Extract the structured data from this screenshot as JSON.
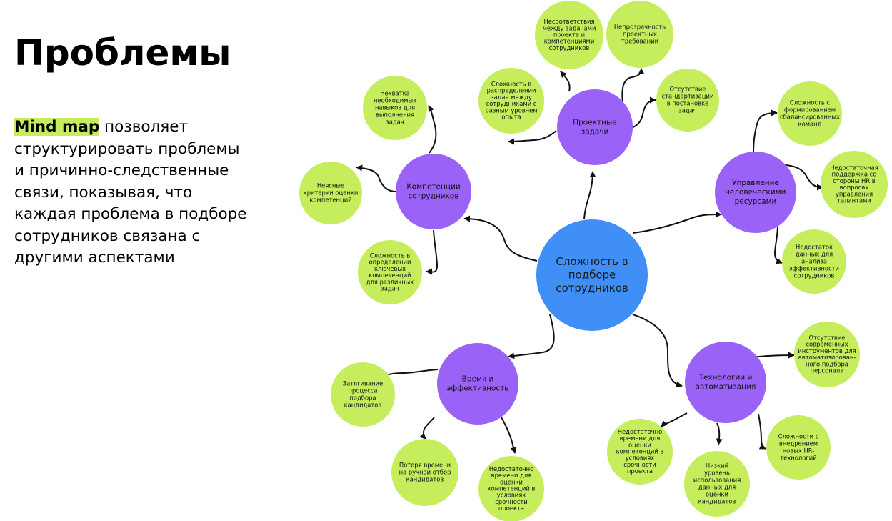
{
  "title": "Проблемы",
  "description": {
    "highlight": "Mind map",
    "text": " позволяет структурировать проблемы и причинно-следственные связи, показывая, что каждая проблема в подборе сотрудников связана с другими аспектами"
  },
  "colors": {
    "center": "#3f8ff7",
    "branch": "#9a62f7",
    "leaf": "#c6ed5c",
    "connector": "#111111"
  },
  "mindmap": {
    "center": [
      "Сложность в",
      "подборе",
      "сотрудников"
    ],
    "branches": [
      {
        "id": "tasks",
        "label": [
          "Проектные",
          "задачи"
        ],
        "leaves": [
          [
            "Несоответствия",
            "между задачами",
            "проекта и",
            "компетенциями",
            "сотрудников"
          ],
          [
            "Непрозрачность",
            "проектных",
            "требований"
          ],
          [
            "Сложность в",
            "распределении",
            "задач между",
            "сотрудниками с",
            "разным уровнем",
            "опыта"
          ],
          [
            "Отсутствие",
            "стандартизации",
            "в постановке",
            "задач"
          ]
        ]
      },
      {
        "id": "competencies",
        "label": [
          "Компетенции",
          "сотрудников"
        ],
        "leaves": [
          [
            "Нехватка",
            "необходимых",
            "навыков для",
            "выполнения",
            "задач"
          ],
          [
            "Неясные",
            "критерии оценки",
            "компетенций"
          ],
          [
            "Сложность в",
            "определении",
            "ключевых",
            "компетенций",
            "для различных",
            "задач"
          ]
        ]
      },
      {
        "id": "hr",
        "label": [
          "Управление",
          "человеческими",
          "ресурсами"
        ],
        "leaves": [
          [
            "Сложность с",
            "формированием",
            "сбалансированных",
            "команд"
          ],
          [
            "Недостаточная",
            "поддержка со",
            "стороны HR в",
            "вопросах",
            "управления",
            "талантами"
          ],
          [
            "Недостаток",
            "данных для",
            "анализа",
            "эффективности",
            "сотрудников"
          ]
        ]
      },
      {
        "id": "time",
        "label": [
          "Время и",
          "эффективность"
        ],
        "leaves": [
          [
            "Затягивание",
            "процесса",
            "подбора",
            "кандидатов"
          ],
          [
            "Потеря времени",
            "на ручной отбор",
            "кандидатов"
          ],
          [
            "Недостаточно",
            "времени для",
            "оценки",
            "компетенций в",
            "условиях",
            "срочности",
            "проекта"
          ]
        ]
      },
      {
        "id": "tech",
        "label": [
          "Технологии и",
          "автоматизация"
        ],
        "leaves": [
          [
            "Отсутствие",
            "современных",
            "инструментов для",
            "автоматизирован-",
            "ного подбора",
            "персонала"
          ],
          [
            "Недостаточно",
            "времени для",
            "оценки",
            "компетенций в",
            "условиях",
            "срочности",
            "проекта"
          ],
          [
            "Низкий",
            "уровень",
            "использования",
            "данных для",
            "оценки",
            "кандидатов"
          ],
          [
            "Сложности с",
            "внедрением",
            "новых HR-",
            "технологий"
          ]
        ]
      }
    ]
  }
}
